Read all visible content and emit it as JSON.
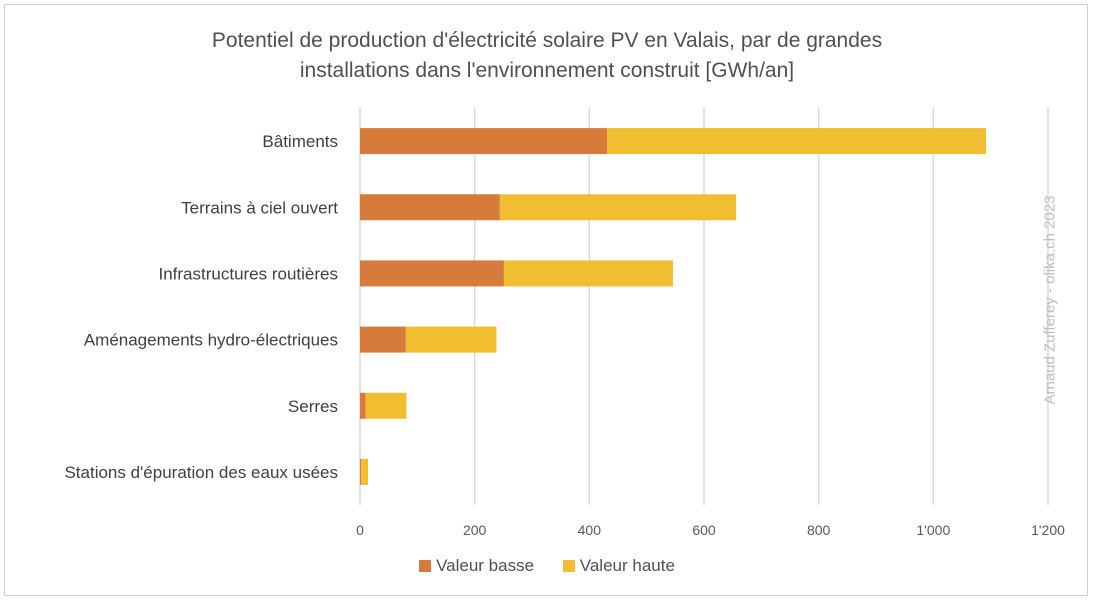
{
  "chart_data": {
    "type": "bar",
    "orientation": "horizontal",
    "stacked": true,
    "title": "Potentiel de production d'électricité solaire PV en Valais, par de grandes installations dans l'environnement construit [GWh/an]",
    "title_lines": [
      "Potentiel de production d'électricité solaire PV en Valais, par de grandes",
      "installations dans l'environnement construit [GWh/an]"
    ],
    "categories": [
      "Bâtiments",
      "Terrains à ciel ouvert",
      "Infrastructures routières",
      "Aménagements hydro-électriques",
      "Serres",
      "Stations d'épuration des eaux usées"
    ],
    "series": [
      {
        "name": "Valeur basse",
        "color": "#d67b3a",
        "values": [
          431,
          244,
          251,
          80,
          10,
          2
        ]
      },
      {
        "name": "Valeur haute",
        "color": "#f0be30",
        "values": [
          661,
          412,
          295,
          158,
          71,
          12
        ]
      }
    ],
    "xlim": [
      0,
      1200
    ],
    "xticks": [
      0,
      200,
      400,
      600,
      800,
      1000,
      1200
    ],
    "xtick_labels": [
      "0",
      "200",
      "400",
      "600",
      "800",
      "1'000",
      "1'200"
    ],
    "grid": "vertical",
    "legend": "bottom",
    "annotation": "Arnaud Zufferey - olika.ch 2023"
  }
}
